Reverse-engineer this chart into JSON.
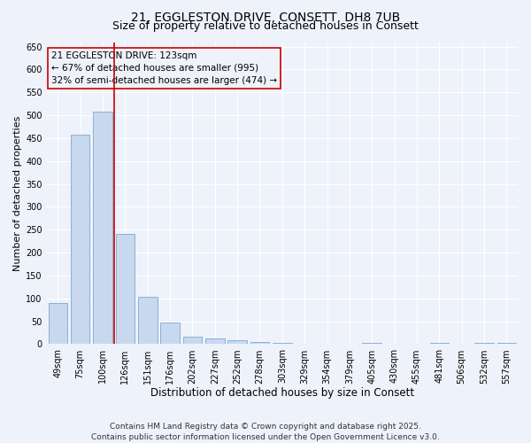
{
  "title": "21, EGGLESTON DRIVE, CONSETT, DH8 7UB",
  "subtitle": "Size of property relative to detached houses in Consett",
  "xlabel": "Distribution of detached houses by size in Consett",
  "ylabel": "Number of detached properties",
  "footer_line1": "Contains HM Land Registry data © Crown copyright and database right 2025.",
  "footer_line2": "Contains public sector information licensed under the Open Government Licence v3.0.",
  "categories": [
    "49sqm",
    "75sqm",
    "100sqm",
    "126sqm",
    "151sqm",
    "176sqm",
    "202sqm",
    "227sqm",
    "252sqm",
    "278sqm",
    "303sqm",
    "329sqm",
    "354sqm",
    "379sqm",
    "405sqm",
    "430sqm",
    "455sqm",
    "481sqm",
    "506sqm",
    "532sqm",
    "557sqm"
  ],
  "values": [
    90,
    458,
    508,
    241,
    103,
    48,
    16,
    12,
    8,
    4,
    2,
    0,
    0,
    0,
    2,
    0,
    0,
    2,
    0,
    2,
    2
  ],
  "bar_color": "#c8d8ee",
  "bar_edge_color": "#8ab0d8",
  "vline_color": "#cc0000",
  "annotation_line1": "21 EGGLESTON DRIVE: 123sqm",
  "annotation_line2": "← 67% of detached houses are smaller (995)",
  "annotation_line3": "32% of semi-detached houses are larger (474) →",
  "annotation_box_edgecolor": "#cc0000",
  "ylim": [
    0,
    660
  ],
  "yticks": [
    0,
    50,
    100,
    150,
    200,
    250,
    300,
    350,
    400,
    450,
    500,
    550,
    600,
    650
  ],
  "background_color": "#eef2fa",
  "grid_color": "#ffffff",
  "title_fontsize": 10,
  "subtitle_fontsize": 9,
  "xlabel_fontsize": 8.5,
  "ylabel_fontsize": 8,
  "tick_fontsize": 7,
  "annotation_fontsize": 7.5,
  "footer_fontsize": 6.5
}
